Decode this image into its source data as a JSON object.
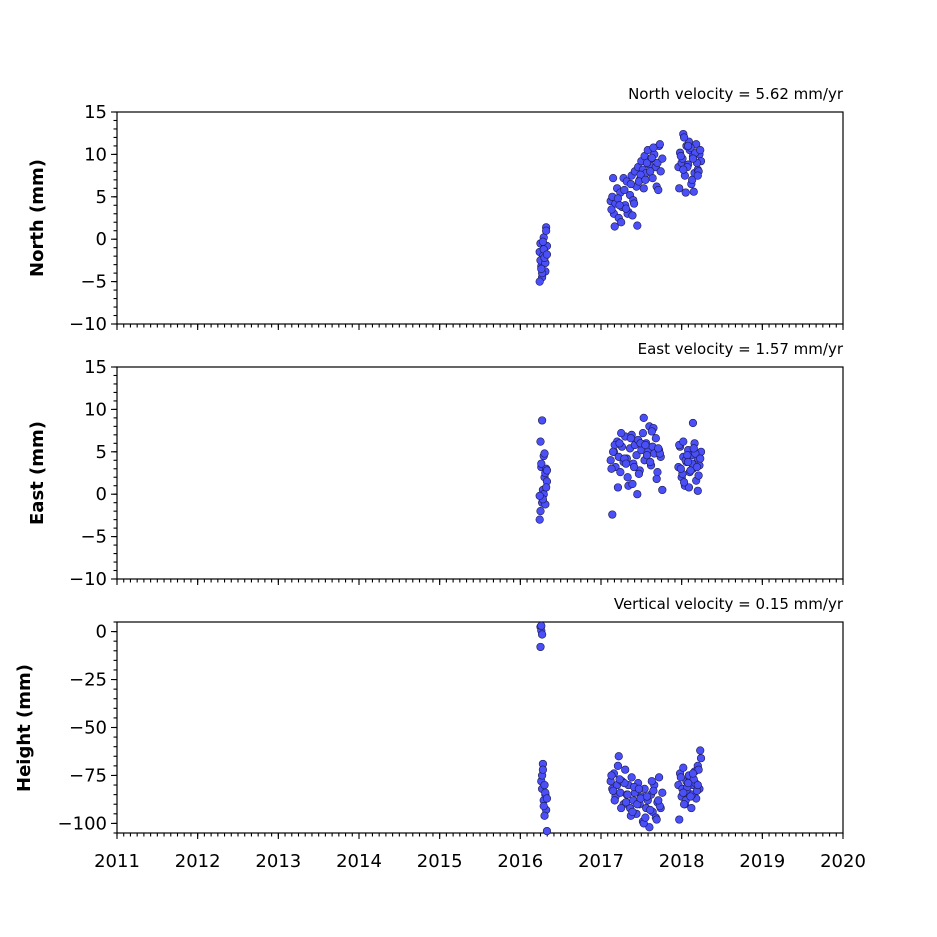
{
  "chart_data": [
    {
      "type": "scatter",
      "title": "North velocity = 5.62 mm/yr",
      "xlabel": "",
      "ylabel": "North (mm)",
      "xlim": [
        2011,
        2020
      ],
      "ylim": [
        -10,
        15
      ],
      "x_ticks": [
        "2011",
        "2012",
        "2013",
        "2014",
        "2015",
        "2016",
        "2017",
        "2018",
        "2019",
        "2020"
      ],
      "y_ticks": [
        "15",
        "10",
        "5",
        "0",
        "−5",
        "−10"
      ],
      "color": "#4a4ff7",
      "x": [
        2016.24,
        2016.25,
        2016.26,
        2016.27,
        2016.28,
        2016.29,
        2016.3,
        2016.31,
        2016.32,
        2016.33,
        2016.25,
        2016.27,
        2016.29,
        2016.31,
        2016.26,
        2016.28,
        2016.3,
        2016.32,
        2016.24,
        2016.33,
        2017.12,
        2017.14,
        2017.16,
        2017.18,
        2017.2,
        2017.22,
        2017.24,
        2017.26,
        2017.28,
        2017.3,
        2017.32,
        2017.34,
        2017.36,
        2017.38,
        2017.4,
        2017.42,
        2017.44,
        2017.46,
        2017.48,
        2017.5,
        2017.52,
        2017.54,
        2017.56,
        2017.58,
        2017.6,
        2017.62,
        2017.64,
        2017.66,
        2017.68,
        2017.7,
        2017.72,
        2017.74,
        2017.76,
        2017.13,
        2017.17,
        2017.21,
        2017.25,
        2017.29,
        2017.33,
        2017.37,
        2017.41,
        2017.45,
        2017.49,
        2017.53,
        2017.57,
        2017.61,
        2017.65,
        2017.69,
        2017.73,
        2017.15,
        2017.23,
        2017.31,
        2017.39,
        2017.47,
        2017.55,
        2017.63,
        2017.71,
        2017.96,
        2017.98,
        2018.0,
        2018.02,
        2018.04,
        2018.06,
        2018.08,
        2018.1,
        2018.12,
        2018.14,
        2018.16,
        2018.18,
        2018.2,
        2018.22,
        2018.24,
        2017.97,
        2018.01,
        2018.05,
        2018.09,
        2018.13,
        2018.17,
        2018.21,
        2017.99,
        2018.03,
        2018.07,
        2018.11,
        2018.15,
        2018.19,
        2018.23,
        2018.02,
        2018.08,
        2018.14,
        2018.2
      ],
      "y": [
        -1.5,
        -0.5,
        -3.2,
        -4.5,
        -2.0,
        0.2,
        -1.0,
        -3.8,
        1.4,
        -0.8,
        -2.5,
        -4.0,
        -1.2,
        -2.8,
        -3.5,
        -0.3,
        -2.2,
        1.0,
        -5.0,
        -1.8,
        4.5,
        5.0,
        3.0,
        4.2,
        6.0,
        2.5,
        5.5,
        3.8,
        7.2,
        4.0,
        6.8,
        3.2,
        5.2,
        7.5,
        4.6,
        8.0,
        6.2,
        8.5,
        7.0,
        9.2,
        8.2,
        9.8,
        7.8,
        10.5,
        8.8,
        9.5,
        7.2,
        10.0,
        8.5,
        9.0,
        11.0,
        8.0,
        9.5,
        3.5,
        1.5,
        4.8,
        2.0,
        5.8,
        3.0,
        6.5,
        4.2,
        1.6,
        7.6,
        6.0,
        9.0,
        8.0,
        10.8,
        6.2,
        11.2,
        7.2,
        4.0,
        3.6,
        2.8,
        6.8,
        7.0,
        9.6,
        5.8,
        8.5,
        10.2,
        9.0,
        12.4,
        7.5,
        11.0,
        8.8,
        10.5,
        6.5,
        9.8,
        7.8,
        11.2,
        8.2,
        10.0,
        9.2,
        6.0,
        9.5,
        5.5,
        11.5,
        7.0,
        10.2,
        8.0,
        9.8,
        12.0,
        8.5,
        10.8,
        5.6,
        9.0,
        10.5,
        8.2,
        11.0,
        9.5,
        7.5
      ]
    },
    {
      "type": "scatter",
      "title": "East velocity = 1.57 mm/yr",
      "xlabel": "",
      "ylabel": "East (mm)",
      "xlim": [
        2011,
        2020
      ],
      "ylim": [
        -10,
        15
      ],
      "x_ticks": [
        "2011",
        "2012",
        "2013",
        "2014",
        "2015",
        "2016",
        "2017",
        "2018",
        "2019",
        "2020"
      ],
      "y_ticks": [
        "15",
        "10",
        "5",
        "0",
        "−5",
        "−10"
      ],
      "color": "#4a4ff7",
      "x": [
        2016.24,
        2016.25,
        2016.26,
        2016.27,
        2016.28,
        2016.29,
        2016.3,
        2016.31,
        2016.32,
        2016.33,
        2016.25,
        2016.27,
        2016.29,
        2016.31,
        2016.26,
        2016.28,
        2016.3,
        2016.32,
        2016.24,
        2016.33,
        2017.12,
        2017.14,
        2017.16,
        2017.18,
        2017.2,
        2017.22,
        2017.24,
        2017.26,
        2017.28,
        2017.3,
        2017.32,
        2017.34,
        2017.36,
        2017.38,
        2017.4,
        2017.42,
        2017.44,
        2017.46,
        2017.48,
        2017.5,
        2017.52,
        2017.54,
        2017.56,
        2017.58,
        2017.6,
        2017.62,
        2017.64,
        2017.66,
        2017.68,
        2017.7,
        2017.72,
        2017.74,
        2017.76,
        2017.13,
        2017.17,
        2017.21,
        2017.25,
        2017.29,
        2017.33,
        2017.37,
        2017.41,
        2017.45,
        2017.49,
        2017.53,
        2017.57,
        2017.61,
        2017.65,
        2017.69,
        2017.73,
        2017.15,
        2017.23,
        2017.31,
        2017.39,
        2017.47,
        2017.55,
        2017.63,
        2017.71,
        2017.96,
        2017.98,
        2018.0,
        2018.02,
        2018.04,
        2018.06,
        2018.08,
        2018.1,
        2018.12,
        2018.14,
        2018.16,
        2018.18,
        2018.2,
        2018.22,
        2018.24,
        2017.97,
        2018.01,
        2018.05,
        2018.09,
        2018.13,
        2018.17,
        2018.21,
        2017.99,
        2018.03,
        2018.07,
        2018.11,
        2018.15,
        2018.19,
        2018.23,
        2018.02,
        2018.08,
        2018.14,
        2018.2
      ],
      "y": [
        -3.0,
        6.2,
        3.2,
        -1.0,
        0.5,
        4.5,
        2.0,
        -1.2,
        3.0,
        1.5,
        -2.0,
        8.7,
        0.0,
        2.5,
        3.6,
        -0.6,
        4.8,
        0.8,
        -0.2,
        2.8,
        4.0,
        -2.4,
        5.0,
        3.2,
        6.2,
        4.4,
        2.6,
        5.6,
        3.8,
        6.8,
        4.2,
        1.0,
        5.4,
        7.0,
        3.6,
        5.8,
        4.6,
        6.4,
        2.8,
        5.2,
        7.2,
        4.0,
        6.0,
        5.0,
        8.0,
        3.4,
        5.6,
        4.8,
        6.6,
        2.6,
        5.2,
        4.4,
        0.5,
        3.0,
        5.8,
        0.8,
        7.2,
        4.2,
        2.0,
        6.6,
        3.2,
        0.0,
        6.0,
        9.0,
        4.6,
        3.8,
        7.8,
        1.8,
        4.8,
        5.0,
        6.0,
        3.6,
        1.2,
        2.4,
        5.8,
        7.4,
        5.4,
        3.2,
        5.6,
        2.0,
        4.4,
        1.0,
        3.8,
        5.2,
        2.6,
        4.6,
        3.0,
        6.0,
        1.6,
        4.2,
        3.4,
        5.0,
        5.8,
        2.4,
        4.0,
        0.8,
        3.6,
        4.8,
        2.2,
        3.0,
        1.4,
        4.6,
        2.8,
        5.4,
        3.2,
        4.2,
        6.2,
        3.8,
        8.4,
        0.4
      ]
    },
    {
      "type": "scatter",
      "title": "Vertical velocity = 0.15 mm/yr",
      "xlabel": "",
      "ylabel": "Height (mm)",
      "xlim": [
        2011,
        2020
      ],
      "ylim": [
        -105,
        5
      ],
      "x_ticks": [
        "2011",
        "2012",
        "2013",
        "2014",
        "2015",
        "2016",
        "2017",
        "2018",
        "2019",
        "2020"
      ],
      "y_ticks": [
        "0",
        "−25",
        "−50",
        "−75",
        "−100"
      ],
      "color": "#4a4ff7",
      "x": [
        2016.25,
        2016.26,
        2016.27,
        2016.25,
        2016.26,
        2016.26,
        2016.27,
        2016.28,
        2016.29,
        2016.3,
        2016.31,
        2016.32,
        2016.33,
        2016.27,
        2016.29,
        2016.31,
        2016.28,
        2016.3,
        2016.33,
        2017.12,
        2017.14,
        2017.16,
        2017.18,
        2017.2,
        2017.22,
        2017.24,
        2017.26,
        2017.28,
        2017.3,
        2017.32,
        2017.34,
        2017.36,
        2017.38,
        2017.4,
        2017.42,
        2017.44,
        2017.46,
        2017.48,
        2017.5,
        2017.52,
        2017.54,
        2017.56,
        2017.58,
        2017.6,
        2017.62,
        2017.64,
        2017.66,
        2017.68,
        2017.7,
        2017.72,
        2017.74,
        2017.76,
        2017.13,
        2017.17,
        2017.21,
        2017.25,
        2017.29,
        2017.33,
        2017.37,
        2017.41,
        2017.45,
        2017.49,
        2017.53,
        2017.57,
        2017.61,
        2017.65,
        2017.69,
        2017.73,
        2017.15,
        2017.23,
        2017.31,
        2017.39,
        2017.47,
        2017.55,
        2017.63,
        2017.71,
        2017.96,
        2017.98,
        2018.0,
        2018.02,
        2018.04,
        2018.06,
        2018.08,
        2018.1,
        2018.12,
        2018.14,
        2018.16,
        2018.18,
        2018.2,
        2018.22,
        2018.24,
        2017.97,
        2018.01,
        2018.05,
        2018.09,
        2018.13,
        2018.17,
        2018.21,
        2017.99,
        2018.03,
        2018.07,
        2018.11,
        2018.15,
        2018.19,
        2018.23,
        2018.02,
        2018.08,
        2018.14,
        2018.2
      ],
      "y": [
        2.5,
        0.5,
        -1.5,
        -8.0,
        3.0,
        -78,
        -82,
        -69,
        -88,
        -80,
        -85,
        -93,
        -104,
        -75,
        -91,
        -84,
        -72,
        -96,
        -87,
        -78,
        -82,
        -74,
        -86,
        -80,
        -65,
        -84,
        -78,
        -90,
        -72,
        -85,
        -80,
        -92,
        -76,
        -88,
        -84,
        -95,
        -79,
        -90,
        -86,
        -99,
        -82,
        -92,
        -88,
        -102,
        -85,
        -94,
        -80,
        -97,
        -89,
        -76,
        -92,
        -84,
        -75,
        -88,
        -70,
        -92,
        -79,
        -85,
        -96,
        -81,
        -90,
        -87,
        -100,
        -86,
        -93,
        -83,
        -98,
        -91,
        -83,
        -77,
        -89,
        -94,
        -82,
        -97,
        -78,
        -88,
        -80,
        -74,
        -86,
        -71,
        -90,
        -78,
        -84,
        -76,
        -92,
        -80,
        -73,
        -87,
        -70,
        -82,
        -66,
        -98,
        -82,
        -88,
        -75,
        -85,
        -79,
        -72,
        -76,
        -90,
        -81,
        -86,
        -77,
        -83,
        -62,
        -84,
        -79,
        -74,
        -80
      ]
    }
  ]
}
